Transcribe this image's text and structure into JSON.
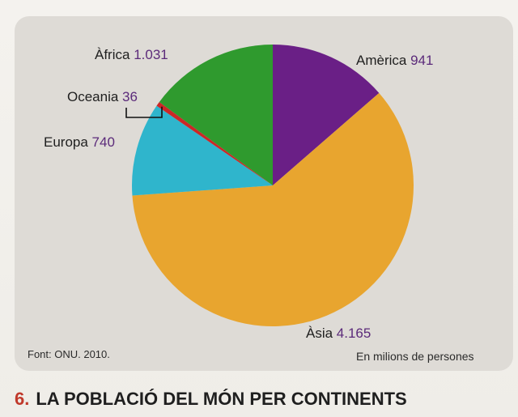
{
  "chart_data": {
    "type": "pie",
    "title": "LA POBLACIÓ DEL MÓN PER CONTINENTS",
    "figure_number": "6.",
    "unit_note": "En milions de persones",
    "source": "Font: ONU. 2010.",
    "series": [
      {
        "name": "Amèrica",
        "label_value": "941",
        "value": 941,
        "color": "#6a1f86"
      },
      {
        "name": "Àsia",
        "label_value": "4.165",
        "value": 4165,
        "color": "#e8a52f"
      },
      {
        "name": "Europa",
        "label_value": "740",
        "value": 740,
        "color": "#2fb5cc"
      },
      {
        "name": "Oceania",
        "label_value": "36",
        "value": 36,
        "color": "#cc2727"
      },
      {
        "name": "Àfrica",
        "label_value": "1.031",
        "value": 1031,
        "color": "#2f9a2e"
      }
    ],
    "legend": "labels-around-pie"
  },
  "colors": {
    "card_background": "#dedbd6",
    "label_text": "#1f1f1f",
    "value_text": "#5b2a7a",
    "figure_number": "#c0392b"
  }
}
